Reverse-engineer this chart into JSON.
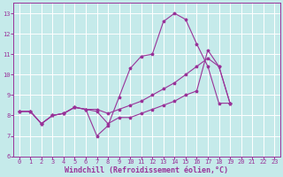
{
  "background_color": "#c5eaea",
  "grid_color": "#ffffff",
  "line_color": "#993399",
  "xlim": [
    -0.5,
    23.5
  ],
  "ylim": [
    6,
    13.5
  ],
  "xticks": [
    0,
    1,
    2,
    3,
    4,
    5,
    6,
    7,
    8,
    9,
    10,
    11,
    12,
    13,
    14,
    15,
    16,
    17,
    18,
    19,
    20,
    21,
    22,
    23
  ],
  "yticks": [
    6,
    7,
    8,
    9,
    10,
    11,
    12,
    13
  ],
  "xlabel": "Windchill (Refroidissement éolien,°C)",
  "series": [
    {
      "x": [
        0,
        1,
        2,
        3,
        4,
        5,
        6,
        7,
        8,
        9,
        10,
        11,
        12,
        13,
        14,
        15,
        16,
        17,
        18,
        19,
        20,
        21,
        22
      ],
      "y": [
        8.2,
        8.2,
        7.6,
        8.0,
        8.1,
        8.4,
        8.3,
        7.0,
        7.5,
        8.9,
        10.3,
        10.9,
        11.0,
        12.6,
        13.0,
        12.7,
        11.5,
        10.4,
        8.6,
        8.6,
        null,
        null,
        null
      ]
    },
    {
      "x": [
        0,
        1,
        2,
        3,
        4,
        5,
        6,
        7,
        8,
        9,
        10,
        11,
        12,
        13,
        14,
        15,
        16,
        17,
        18,
        19,
        20,
        21,
        22
      ],
      "y": [
        8.2,
        8.2,
        7.6,
        8.0,
        8.1,
        8.4,
        8.3,
        8.2,
        7.6,
        7.9,
        7.9,
        8.1,
        8.3,
        8.5,
        8.7,
        9.0,
        9.2,
        11.2,
        10.4,
        8.6,
        null,
        null,
        null
      ]
    },
    {
      "x": [
        0,
        1,
        2,
        3,
        4,
        5,
        6,
        7,
        8,
        9,
        10,
        11,
        12,
        13,
        14,
        15,
        16,
        17,
        18,
        19,
        20,
        21,
        22
      ],
      "y": [
        8.2,
        8.2,
        7.6,
        8.0,
        8.1,
        8.4,
        8.3,
        8.3,
        8.1,
        8.3,
        8.5,
        8.7,
        9.0,
        9.3,
        9.6,
        10.0,
        10.4,
        10.8,
        10.4,
        8.6,
        null,
        null,
        null
      ]
    }
  ],
  "axis_fontsize": 5.5,
  "tick_fontsize": 5.0,
  "xlabel_fontsize": 6.0
}
